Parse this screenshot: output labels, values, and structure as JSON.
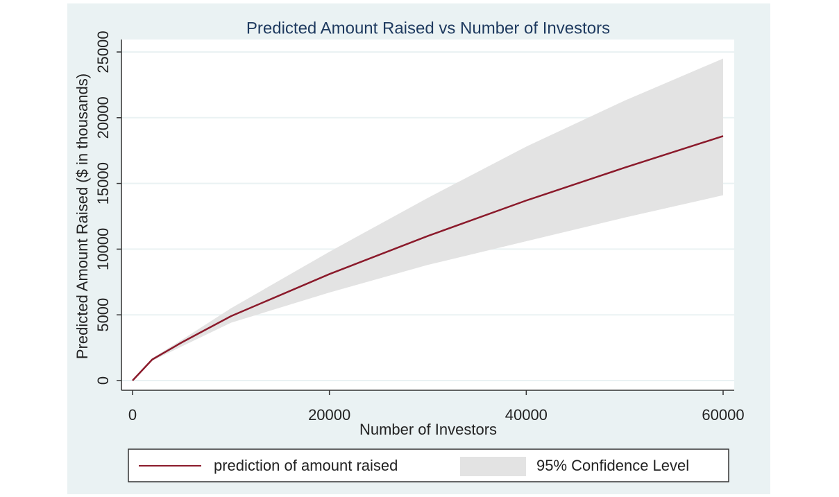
{
  "chart_data": {
    "type": "line",
    "title": "Predicted Amount Raised vs Number of Investors",
    "x_label": "Number of Investors",
    "y_label": "Predicted Amount Raised ($ in thousands)",
    "x": [
      0,
      2000,
      5000,
      10000,
      20000,
      30000,
      40000,
      50000,
      60000
    ],
    "series": [
      {
        "name": "prediction of amount raised",
        "color": "#8b1a2b",
        "values": [
          0,
          1600,
          2900,
          4900,
          8100,
          11000,
          13700,
          16200,
          18600
        ]
      }
    ],
    "band": {
      "name": "95% Confidence Level",
      "color": "#e3e3e3",
      "lower": [
        0,
        1500,
        2600,
        4400,
        6700,
        8800,
        10600,
        12400,
        14100
      ],
      "upper": [
        0,
        1700,
        3100,
        5500,
        9800,
        13900,
        17800,
        21300,
        24500
      ]
    },
    "xlim": [
      0,
      60000
    ],
    "xticks": [
      0,
      20000,
      40000,
      60000
    ],
    "ylim": [
      0,
      25000
    ],
    "yticks": [
      0,
      5000,
      10000,
      15000,
      20000,
      25000
    ],
    "grid": true
  }
}
